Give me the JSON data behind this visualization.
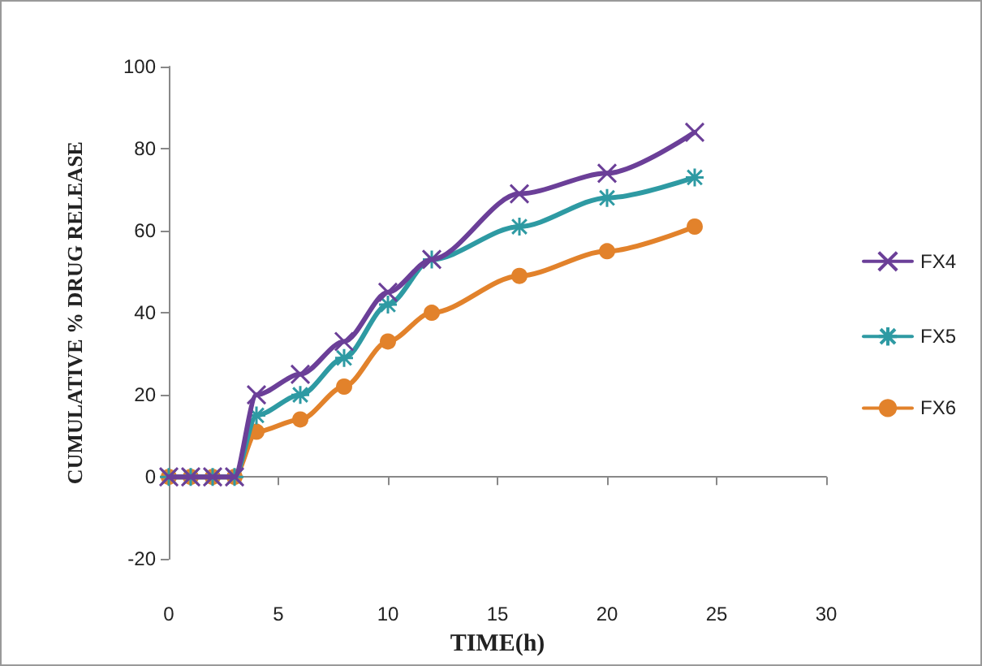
{
  "chart_data": {
    "type": "line",
    "xlabel": "TIME(h)",
    "ylabel": "CUMULATIVE % DRUG RELEASE",
    "x": [
      0,
      1,
      2,
      3,
      4,
      6,
      8,
      10,
      12,
      16,
      20,
      24
    ],
    "series": [
      {
        "name": "FX4",
        "color": "#6b3f98",
        "marker": "cross",
        "values": [
          0,
          0,
          0,
          0,
          20,
          25,
          33,
          45,
          53,
          69,
          74,
          84
        ]
      },
      {
        "name": "FX5",
        "color": "#2e9aa3",
        "marker": "star",
        "values": [
          0,
          0,
          0,
          0,
          15,
          20,
          29,
          42,
          53,
          61,
          68,
          73
        ]
      },
      {
        "name": "FX6",
        "color": "#e2822b",
        "marker": "circle",
        "values": [
          0,
          0,
          0,
          0,
          11,
          14,
          22,
          33,
          40,
          49,
          55,
          61
        ]
      }
    ],
    "xlim": [
      0,
      30
    ],
    "xticks": [
      0,
      5,
      10,
      15,
      20,
      25,
      30
    ],
    "ylim": [
      -20,
      100
    ],
    "yticks": [
      -20,
      0,
      20,
      40,
      60,
      80,
      100
    ],
    "legend": "right",
    "line_style": "solid"
  }
}
